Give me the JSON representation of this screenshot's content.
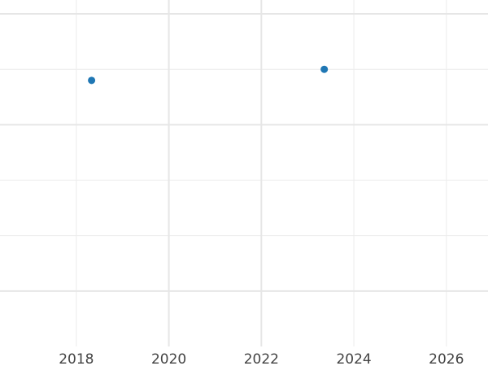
{
  "chart_data": {
    "type": "scatter",
    "title": "",
    "xlabel": "",
    "ylabel": "",
    "xlim": [
      2016.35,
      2026.9
    ],
    "ylim": [
      0.0,
      6.25
    ],
    "x_ticks": [
      2018,
      2020,
      2022,
      2024,
      2026
    ],
    "x_tick_labels": [
      "2018",
      "2020",
      "2022",
      "2024",
      "2026"
    ],
    "x_major_grid": [
      2020,
      2022
    ],
    "x_minor_grid": [
      2018,
      2024,
      2026
    ],
    "y_major_grid": [
      1,
      4,
      6
    ],
    "y_minor_grid": [
      2,
      3,
      5
    ],
    "y_tick_labels_shown": false,
    "grid": true,
    "point_color": "#1f77b4",
    "points": [
      {
        "x": 2018.33,
        "y": 4.8
      },
      {
        "x": 2023.36,
        "y": 5.0
      }
    ]
  }
}
